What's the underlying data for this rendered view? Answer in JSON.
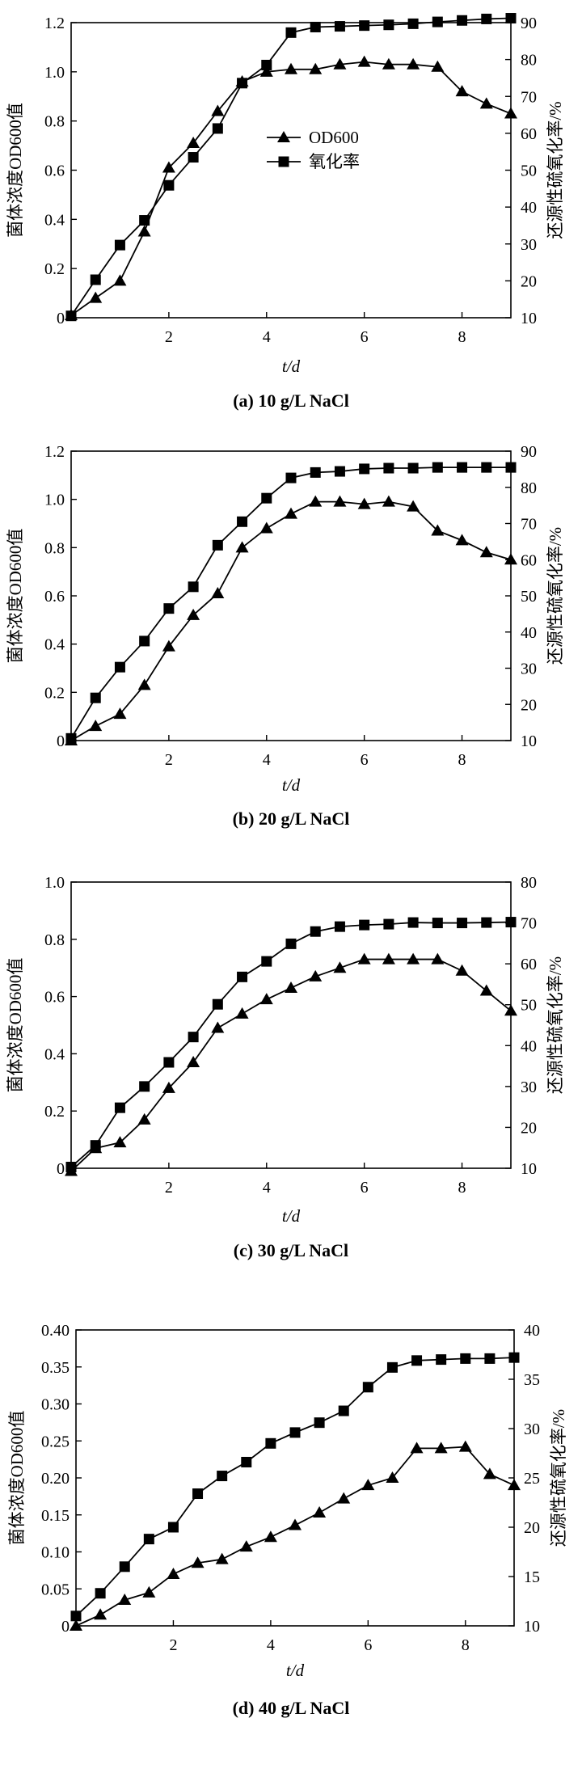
{
  "chart_data": [
    {
      "type": "line",
      "caption": "(a) 10 g/L NaCl",
      "ylabel": "菌体浓度OD600值",
      "y2label": "还源性硫氧化率/%",
      "xlabel": "t/d",
      "xlim": [
        0,
        9
      ],
      "xticks": [
        2,
        4,
        6,
        8
      ],
      "ylim": [
        0,
        1.2
      ],
      "yticks": [
        "0",
        "0.2",
        "0.4",
        "0.6",
        "0.8",
        "1.0",
        "1.2"
      ],
      "y2lim": [
        10,
        90
      ],
      "y2ticks": [
        "10",
        "20",
        "30",
        "40",
        "50",
        "60",
        "70",
        "80",
        "90"
      ],
      "legend": {
        "show": true,
        "placement": "center-right",
        "labels": [
          "OD600",
          "氧化率"
        ]
      },
      "series": [
        {
          "name": "OD600",
          "marker": "triangle",
          "axis": "left",
          "x": [
            0,
            0.5,
            1,
            1.5,
            2,
            2.5,
            3,
            3.5,
            4,
            4.5,
            5,
            5.5,
            6,
            6.5,
            7,
            7.5,
            8,
            8.5,
            9
          ],
          "y": [
            0.01,
            0.08,
            0.15,
            0.35,
            0.61,
            0.71,
            0.84,
            0.96,
            1.0,
            1.01,
            1.01,
            1.03,
            1.04,
            1.03,
            1.03,
            1.02,
            0.92,
            0.87,
            0.83
          ]
        },
        {
          "name": "氧化率",
          "marker": "square",
          "axis": "right",
          "x": [
            0,
            0.5,
            1,
            1.5,
            2,
            2.5,
            3,
            3.5,
            4,
            4.5,
            5,
            5.5,
            6,
            6.5,
            7,
            7.5,
            8,
            8.5,
            9
          ],
          "y": [
            10.5,
            20.3,
            29.7,
            36.4,
            45.9,
            53.5,
            61.3,
            73.6,
            78.5,
            87.3,
            88.8,
            89.0,
            89.2,
            89.4,
            89.7,
            90.2,
            90.6,
            91.0,
            91.2
          ]
        }
      ]
    },
    {
      "type": "line",
      "caption": "(b) 20 g/L NaCl",
      "ylabel": "菌体浓度OD600值",
      "y2label": "还源性硫氧化率/%",
      "xlabel": "t/d",
      "xlim": [
        0,
        9
      ],
      "xticks": [
        2,
        4,
        6,
        8
      ],
      "ylim": [
        0,
        1.2
      ],
      "yticks": [
        "0",
        "0.2",
        "0.4",
        "0.6",
        "0.8",
        "1.0",
        "1.2"
      ],
      "y2lim": [
        10,
        90
      ],
      "y2ticks": [
        "10",
        "20",
        "30",
        "40",
        "50",
        "60",
        "70",
        "80",
        "90"
      ],
      "legend": {
        "show": false
      },
      "series": [
        {
          "name": "OD600",
          "marker": "triangle",
          "axis": "left",
          "x": [
            0,
            0.5,
            1,
            1.5,
            2,
            2.5,
            3,
            3.5,
            4,
            4.5,
            5,
            5.5,
            6,
            6.5,
            7,
            7.5,
            8,
            8.5,
            9
          ],
          "y": [
            0.0,
            0.06,
            0.11,
            0.23,
            0.39,
            0.52,
            0.61,
            0.8,
            0.88,
            0.94,
            0.99,
            0.99,
            0.98,
            0.99,
            0.97,
            0.87,
            0.83,
            0.78,
            0.75
          ]
        },
        {
          "name": "氧化率",
          "marker": "square",
          "axis": "right",
          "x": [
            0,
            0.5,
            1,
            1.5,
            2,
            2.5,
            3,
            3.5,
            4,
            4.5,
            5,
            5.5,
            6,
            6.5,
            7,
            7.5,
            8,
            8.5,
            9
          ],
          "y": [
            10.6,
            21.8,
            30.3,
            37.5,
            46.5,
            52.5,
            64.0,
            70.5,
            77.0,
            82.6,
            84.1,
            84.4,
            85.1,
            85.3,
            85.3,
            85.5,
            85.5,
            85.5,
            85.5
          ]
        }
      ]
    },
    {
      "type": "line",
      "caption": "(c) 30 g/L NaCl",
      "ylabel": "菌体浓度OD600值",
      "y2label": "还源性硫氧化率/%",
      "xlabel": "t/d",
      "xlim": [
        0,
        9
      ],
      "xticks": [
        2,
        4,
        6,
        8
      ],
      "ylim": [
        0,
        1.0
      ],
      "yticks": [
        "0",
        "0.2",
        "0.4",
        "0.6",
        "0.8",
        "1.0"
      ],
      "y2lim": [
        10,
        80
      ],
      "y2ticks": [
        "10",
        "20",
        "30",
        "40",
        "50",
        "60",
        "70",
        "80"
      ],
      "legend": {
        "show": false
      },
      "series": [
        {
          "name": "OD600",
          "marker": "triangle",
          "axis": "left",
          "x": [
            0,
            0.5,
            1,
            1.5,
            2,
            2.5,
            3,
            3.5,
            4,
            4.5,
            5,
            5.5,
            6,
            6.5,
            7,
            7.5,
            8,
            8.5,
            9
          ],
          "y": [
            -0.01,
            0.07,
            0.09,
            0.17,
            0.28,
            0.37,
            0.49,
            0.54,
            0.59,
            0.63,
            0.67,
            0.7,
            0.73,
            0.73,
            0.73,
            0.73,
            0.69,
            0.62,
            0.55
          ]
        },
        {
          "name": "氧化率",
          "marker": "square",
          "axis": "right",
          "x": [
            0,
            0.5,
            1,
            1.5,
            2,
            2.5,
            3,
            3.5,
            4,
            4.5,
            5,
            5.5,
            6,
            6.5,
            7,
            7.5,
            8,
            8.5,
            9
          ],
          "y": [
            10.3,
            15.6,
            24.8,
            30.0,
            35.9,
            42.1,
            50.1,
            56.8,
            60.6,
            64.9,
            67.9,
            69.1,
            69.5,
            69.7,
            70.1,
            70.0,
            70.0,
            70.1,
            70.2
          ]
        }
      ]
    },
    {
      "type": "line",
      "caption": "(d) 40 g/L NaCl",
      "ylabel": "菌体浓度OD600值",
      "y2label": "还源性硫氧化率/%",
      "xlabel": "t/d",
      "xlim": [
        0,
        9
      ],
      "xticks": [
        2,
        4,
        6,
        8
      ],
      "ylim": [
        0,
        0.4
      ],
      "yticks": [
        "0",
        "0.05",
        "0.10",
        "0.15",
        "0.20",
        "0.25",
        "0.30",
        "0.35",
        "0.40"
      ],
      "y2lim": [
        10,
        40
      ],
      "y2ticks": [
        "10",
        "15",
        "20",
        "25",
        "30",
        "35",
        "40"
      ],
      "legend": {
        "show": false
      },
      "series": [
        {
          "name": "OD600",
          "marker": "triangle",
          "axis": "left",
          "x": [
            0,
            0.5,
            1,
            1.5,
            2,
            2.5,
            3,
            3.5,
            4,
            4.5,
            5,
            5.5,
            6,
            6.5,
            7,
            7.5,
            8,
            8.5,
            9
          ],
          "y": [
            0.0,
            0.015,
            0.035,
            0.045,
            0.07,
            0.085,
            0.09,
            0.107,
            0.12,
            0.136,
            0.153,
            0.172,
            0.19,
            0.2,
            0.24,
            0.24,
            0.242,
            0.205,
            0.19
          ]
        },
        {
          "name": "氧化率",
          "marker": "square",
          "axis": "right",
          "x": [
            0,
            0.5,
            1,
            1.5,
            2,
            2.5,
            3,
            3.5,
            4,
            4.5,
            5,
            5.5,
            6,
            6.5,
            7,
            7.5,
            8,
            8.5,
            9
          ],
          "y": [
            11.0,
            13.3,
            16.0,
            18.8,
            20.0,
            23.4,
            25.2,
            26.6,
            28.5,
            29.6,
            30.6,
            31.8,
            34.2,
            36.2,
            36.9,
            37.0,
            37.1,
            37.1,
            37.2
          ]
        }
      ]
    }
  ]
}
